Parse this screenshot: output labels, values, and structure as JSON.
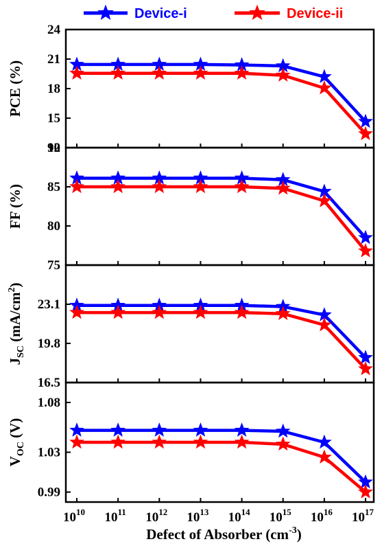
{
  "chart_data": {
    "type": "line",
    "x_scale": "log",
    "x_ticks": [
      "10",
      "11",
      "12",
      "13",
      "14",
      "15",
      "16",
      "17"
    ],
    "x_tick_base": "10",
    "x": [
      10000000000.0,
      100000000000.0,
      1000000000000.0,
      10000000000000.0,
      100000000000000.0,
      1000000000000000.0,
      1e+16,
      1e+17
    ],
    "xlabel": {
      "main": "Defect of Absorber (cm",
      "sup": "-3",
      "end": ")"
    },
    "legend": {
      "placement": "top",
      "entries": [
        {
          "name": "Device-i",
          "color": "#0000ff"
        },
        {
          "name": "Device-ii",
          "color": "#ff0000"
        }
      ]
    },
    "panels": [
      {
        "ylabel": "PCE (%)",
        "ylabel_sub": "",
        "ylabel_sup": "",
        "ylabel_end": "",
        "ylim": [
          12,
          24
        ],
        "yticks": [
          12,
          15,
          18,
          21,
          24
        ],
        "ytick_labels": [
          "12",
          "15",
          "18",
          "21",
          "24"
        ],
        "series": [
          {
            "name": "Device-i",
            "values": [
              20.45,
              20.45,
              20.45,
              20.45,
              20.4,
              20.3,
              19.2,
              14.65
            ]
          },
          {
            "name": "Device-ii",
            "values": [
              19.55,
              19.55,
              19.55,
              19.55,
              19.55,
              19.35,
              18.05,
              13.4
            ]
          }
        ]
      },
      {
        "ylabel": "FF (%)",
        "ylabel_sub": "",
        "ylabel_sup": "",
        "ylabel_end": "",
        "ylim": [
          75,
          90
        ],
        "yticks": [
          75,
          80,
          85,
          90
        ],
        "ytick_labels": [
          "75",
          "80",
          "85",
          "90"
        ],
        "series": [
          {
            "name": "Device-i",
            "values": [
              86.1,
              86.1,
              86.1,
              86.1,
              86.1,
              85.9,
              84.4,
              78.5
            ]
          },
          {
            "name": "Device-ii",
            "values": [
              85.0,
              85.0,
              85.0,
              85.0,
              85.0,
              84.8,
              83.2,
              76.8
            ]
          }
        ]
      },
      {
        "ylabel": "J",
        "ylabel_sub": "SC",
        "ylabel_mid": " (mA/cm",
        "ylabel_sup": "2",
        "ylabel_end": ")",
        "ylim": [
          16.5,
          26.4
        ],
        "yticks": [
          16.5,
          19.8,
          23.1
        ],
        "ytick_labels": [
          "16.5",
          "19.8",
          "23.1"
        ],
        "series": [
          {
            "name": "Device-i",
            "values": [
              23.0,
              23.0,
              23.0,
              23.0,
              23.0,
              22.9,
              22.2,
              18.6
            ]
          },
          {
            "name": "Device-ii",
            "values": [
              22.4,
              22.4,
              22.4,
              22.4,
              22.4,
              22.3,
              21.35,
              17.65
            ]
          }
        ]
      },
      {
        "ylabel": "V",
        "ylabel_sub": "OC",
        "ylabel_mid": " (V)",
        "ylabel_sup": "",
        "ylabel_end": "",
        "ylim": [
          0.98,
          1.1
        ],
        "yticks": [
          0.99,
          1.03,
          1.08
        ],
        "ytick_labels": [
          "0.99",
          "1.03",
          "1.08"
        ],
        "series": [
          {
            "name": "Device-i",
            "values": [
              1.052,
              1.052,
              1.052,
              1.052,
              1.052,
              1.051,
              1.04,
              1.0
            ]
          },
          {
            "name": "Device-ii",
            "values": [
              1.04,
              1.04,
              1.04,
              1.04,
              1.04,
              1.038,
              1.025,
              0.99
            ]
          }
        ]
      }
    ]
  }
}
